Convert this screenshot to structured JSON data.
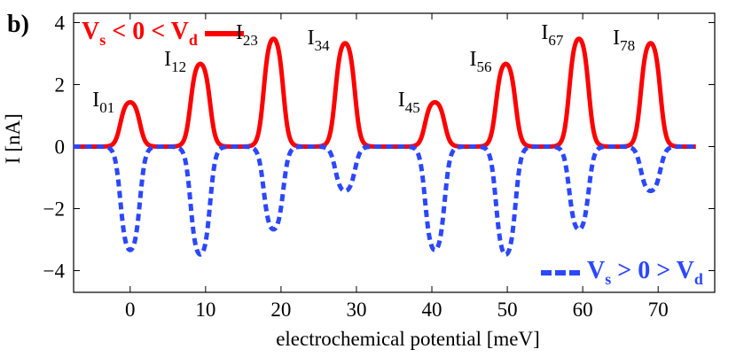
{
  "panel_label": "b)",
  "chart_data": {
    "type": "line",
    "xlabel": "electrochemical potential [meV]",
    "ylabel": "I [nA]",
    "xlim": [
      -7.5,
      77.5
    ],
    "ylim": [
      -4.7,
      4.3
    ],
    "xticks": [
      "0",
      "10",
      "20",
      "30",
      "40",
      "50",
      "60",
      "70"
    ],
    "yticks": [
      "−4",
      "−2",
      "0",
      "2",
      "4"
    ],
    "grid": false,
    "legend": [
      {
        "main": "V",
        "sub": "s",
        "middle": " < 0 < V",
        "sub2": "d",
        "placement": "top-left",
        "color": "#ff0000",
        "style": "solid"
      },
      {
        "main": "V",
        "sub": "s",
        "middle": " > 0 > V",
        "sub2": "d",
        "placement": "bottom-right",
        "color": "#2b47ff",
        "style": "dashed"
      }
    ],
    "series": [
      {
        "color": "#ff0000",
        "style": "solid",
        "peaks": [
          {
            "center": 0,
            "height": 1.5
          },
          {
            "center": 9.3,
            "height": 2.8
          },
          {
            "center": 19,
            "height": 3.65
          },
          {
            "center": 28.5,
            "height": 3.5
          },
          {
            "center": 40.4,
            "height": 1.5
          },
          {
            "center": 49.8,
            "height": 2.8
          },
          {
            "center": 59.5,
            "height": 3.65
          },
          {
            "center": 69,
            "height": 3.5
          }
        ]
      },
      {
        "color": "#2b47ff",
        "style": "dashed",
        "peaks": [
          {
            "center": 0,
            "height": -3.5
          },
          {
            "center": 9.3,
            "height": -3.65
          },
          {
            "center": 19,
            "height": -2.8
          },
          {
            "center": 28.5,
            "height": -1.5
          },
          {
            "center": 40.4,
            "height": -3.5
          },
          {
            "center": 49.8,
            "height": -3.65
          },
          {
            "center": 59.5,
            "height": -2.8
          },
          {
            "center": 69,
            "height": -1.5
          }
        ]
      }
    ],
    "annotations": [
      {
        "main": "I",
        "sub": "01",
        "x": -5,
        "y": 1.2
      },
      {
        "main": "I",
        "sub": "12",
        "x": 4.5,
        "y": 2.5
      },
      {
        "main": "I",
        "sub": "23",
        "x": 14,
        "y": 3.35
      },
      {
        "main": "I",
        "sub": "34",
        "x": 23.5,
        "y": 3.2
      },
      {
        "main": "I",
        "sub": "45",
        "x": 35.5,
        "y": 1.2
      },
      {
        "main": "I",
        "sub": "56",
        "x": 45,
        "y": 2.5
      },
      {
        "main": "I",
        "sub": "67",
        "x": 54.5,
        "y": 3.35
      },
      {
        "main": "I",
        "sub": "78",
        "x": 64,
        "y": 3.2
      }
    ]
  }
}
